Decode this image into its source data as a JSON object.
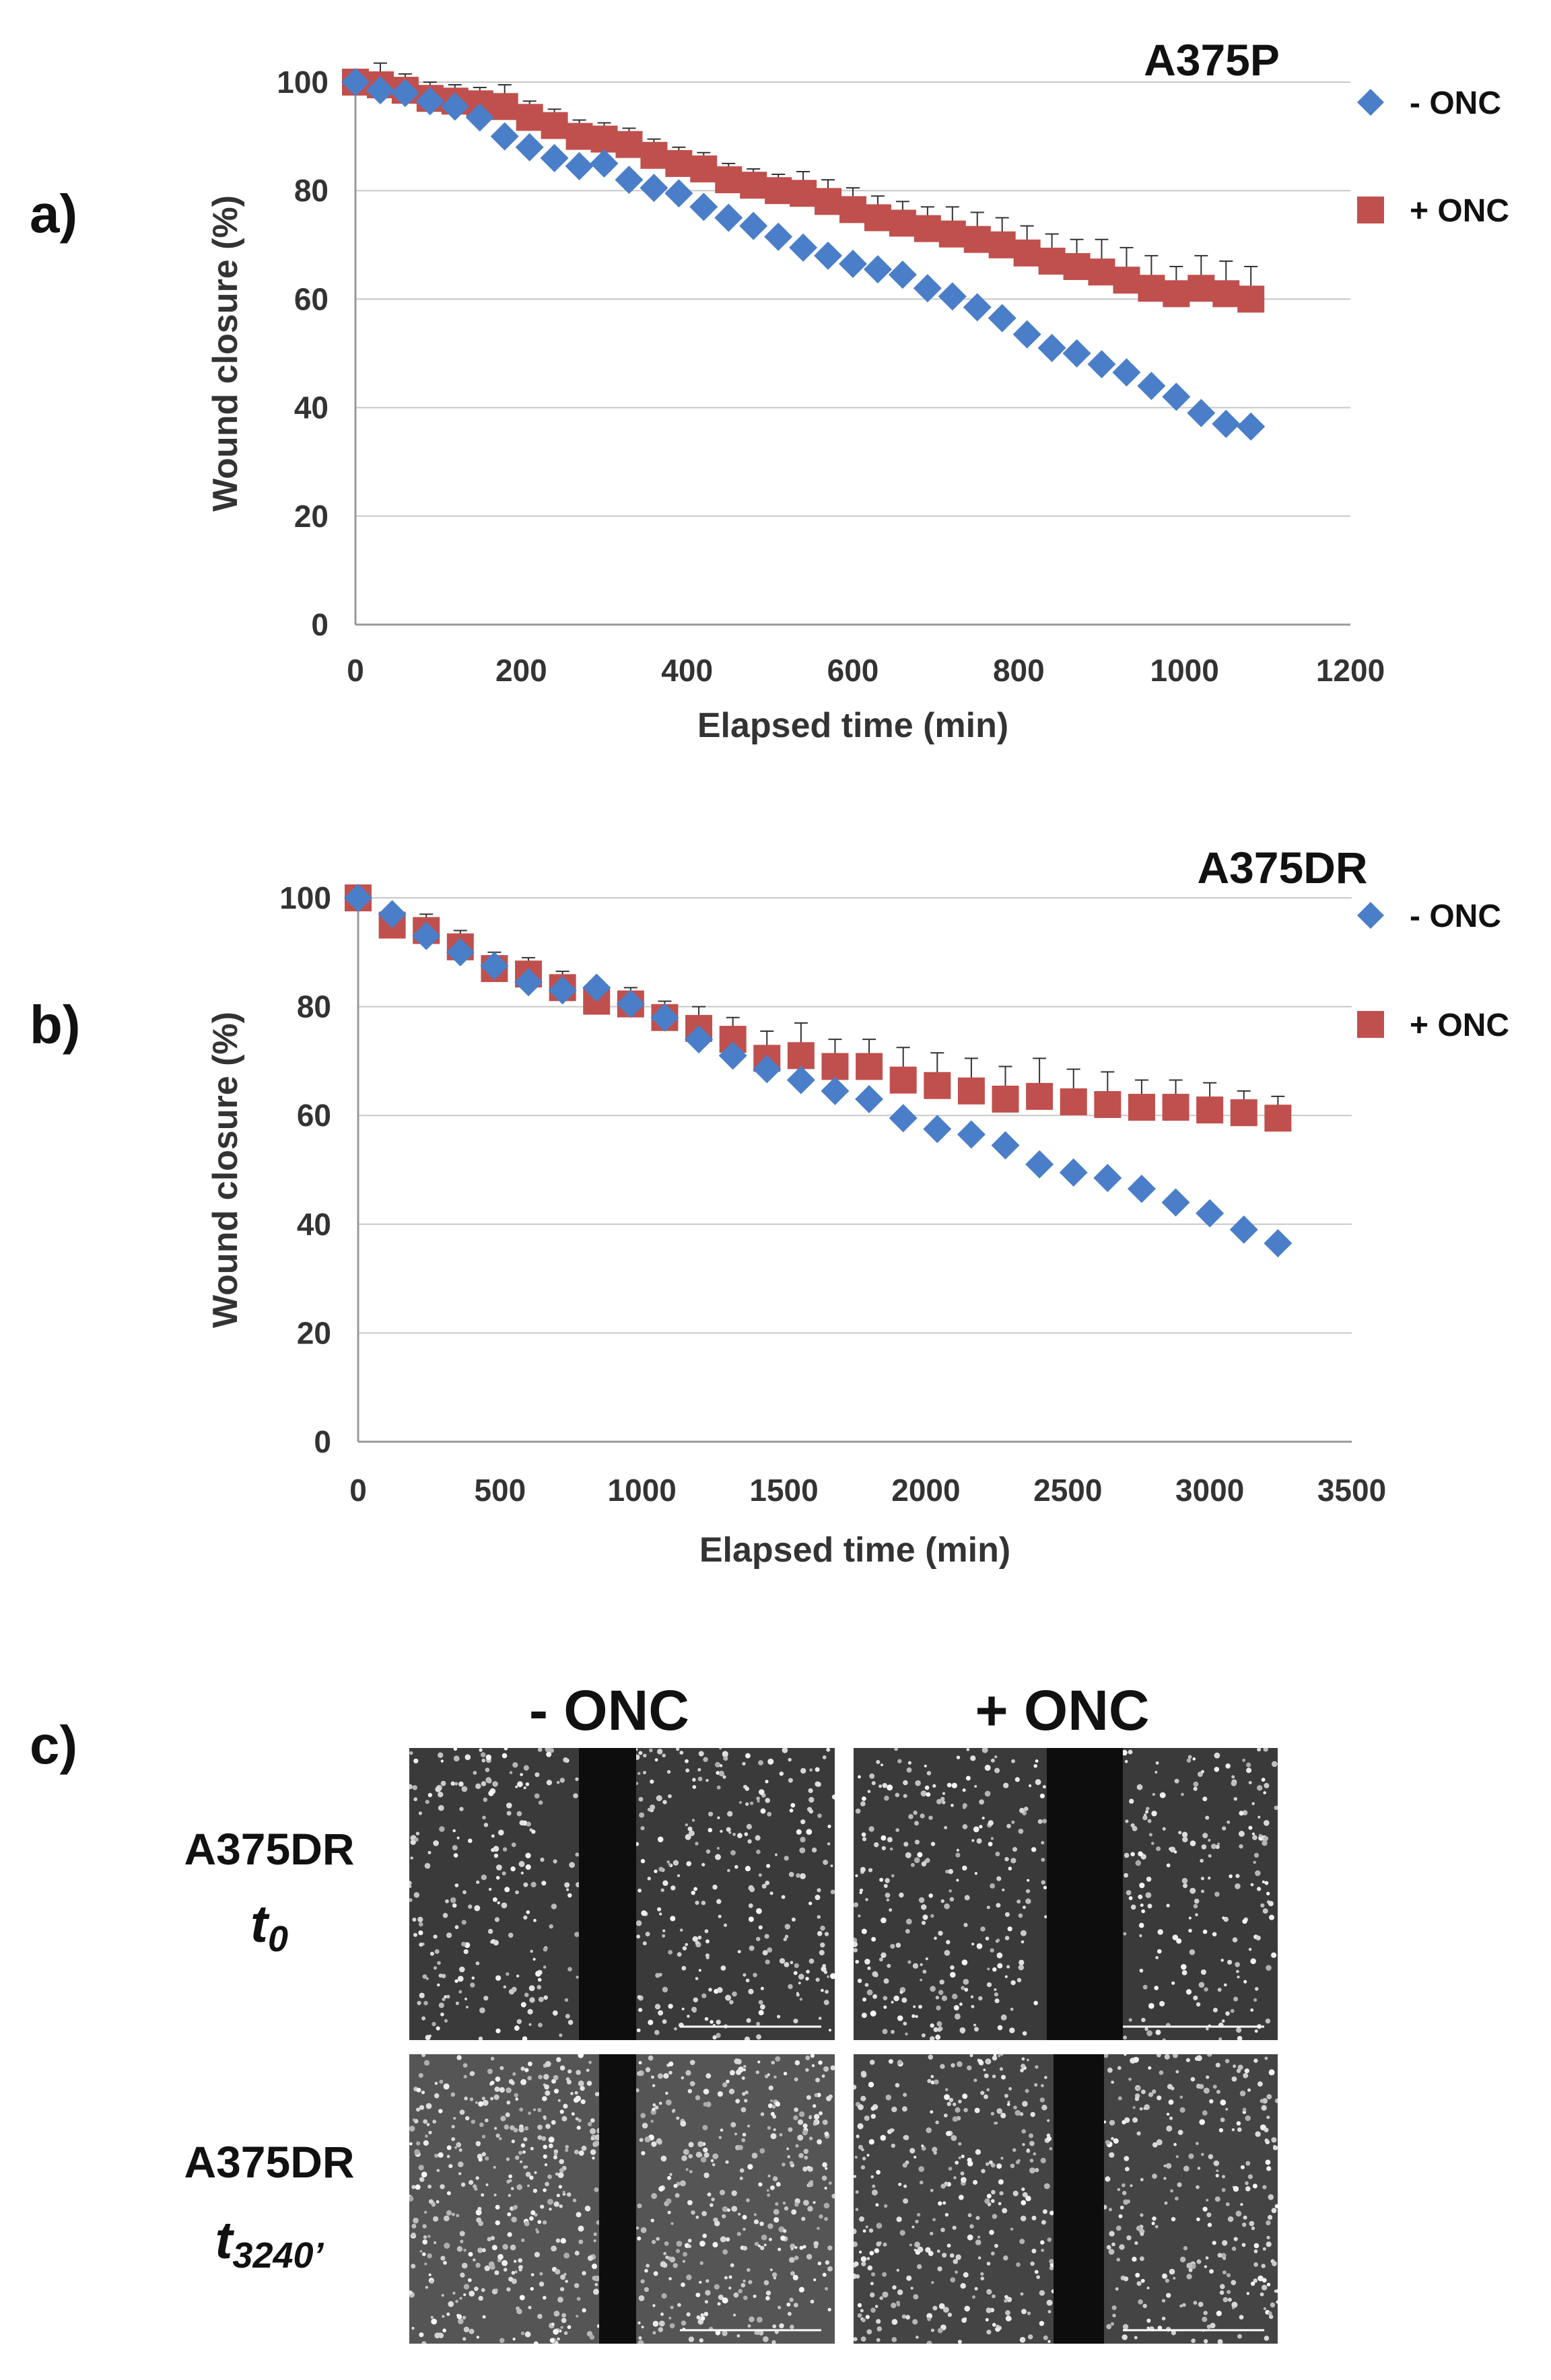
{
  "panels": {
    "a": "a)",
    "b": "b)",
    "c": "c)"
  },
  "chart_data": [
    {
      "type": "scatter",
      "title": "A375P",
      "xlabel": "Elapsed time (min)",
      "ylabel": "Wound closure (%)",
      "xlim": [
        0,
        1200
      ],
      "ylim": [
        0,
        100
      ],
      "xticks": [
        "0",
        "200",
        "400",
        "600",
        "800",
        "1000",
        "1200"
      ],
      "yticks": [
        "0",
        "20",
        "40",
        "60",
        "80",
        "100"
      ],
      "grid": "horizontal",
      "legend_position": "right",
      "series": [
        {
          "name": "- ONC",
          "color": "#4a7ec8",
          "marker": "diamond",
          "x": [
            0,
            30,
            60,
            90,
            120,
            150,
            180,
            210,
            240,
            270,
            300,
            330,
            360,
            390,
            420,
            450,
            480,
            510,
            540,
            570,
            600,
            630,
            660,
            690,
            720,
            750,
            780,
            810,
            840,
            870,
            900,
            930,
            960,
            990,
            1020,
            1050,
            1080
          ],
          "y": [
            100,
            98.5,
            98,
            96.5,
            95.5,
            93.5,
            90,
            88,
            86,
            84.5,
            85,
            82,
            80.5,
            79.5,
            77,
            75,
            73.5,
            71.5,
            69.5,
            68,
            66.5,
            65.5,
            64.5,
            62,
            60.5,
            58.5,
            56.5,
            53.5,
            51,
            50,
            48,
            46.5,
            44,
            42,
            39,
            37,
            36.5
          ]
        },
        {
          "name": "+ ONC",
          "color": "#c0504d",
          "marker": "square",
          "x": [
            0,
            30,
            60,
            90,
            120,
            150,
            180,
            210,
            240,
            270,
            300,
            330,
            360,
            390,
            420,
            450,
            480,
            510,
            540,
            570,
            600,
            630,
            660,
            690,
            720,
            750,
            780,
            810,
            840,
            870,
            900,
            930,
            960,
            990,
            1020,
            1050,
            1080
          ],
          "y": [
            100,
            99.5,
            98.5,
            97,
            96.5,
            96,
            95.5,
            93.5,
            92,
            90,
            89.5,
            88.5,
            86.5,
            85,
            84,
            82,
            81,
            80,
            79.5,
            78,
            76.5,
            75,
            74,
            73,
            72,
            71,
            70,
            68.5,
            67,
            66,
            65,
            63.5,
            62,
            61,
            62,
            61,
            60
          ],
          "err": [
            0,
            4,
            3,
            3,
            3,
            3,
            4,
            3,
            3,
            3,
            3,
            3,
            3,
            3,
            3,
            3,
            3,
            3,
            4,
            4,
            4,
            4,
            4,
            4,
            5,
            5,
            5,
            5,
            5,
            5,
            6,
            6,
            6,
            5,
            6,
            6,
            6
          ]
        }
      ]
    },
    {
      "type": "scatter",
      "title": "A375DR",
      "xlabel": "Elapsed time (min)",
      "ylabel": "Wound closure (%)",
      "xlim": [
        0,
        3500
      ],
      "ylim": [
        0,
        100
      ],
      "xticks": [
        "0",
        "500",
        "1000",
        "1500",
        "2000",
        "2500",
        "3000",
        "3500"
      ],
      "yticks": [
        "0",
        "20",
        "40",
        "60",
        "80",
        "100"
      ],
      "grid": "horizontal",
      "legend_position": "right",
      "series": [
        {
          "name": "- ONC",
          "color": "#4a7ec8",
          "marker": "diamond",
          "x": [
            0,
            120,
            240,
            360,
            480,
            600,
            720,
            840,
            960,
            1080,
            1200,
            1320,
            1440,
            1560,
            1680,
            1800,
            1920,
            2040,
            2160,
            2280,
            2400,
            2520,
            2640,
            2760,
            2880,
            3000,
            3120,
            3240
          ],
          "y": [
            100,
            97,
            93,
            90,
            87.5,
            84.5,
            83,
            83.5,
            80.5,
            78,
            74,
            71,
            68.5,
            66.5,
            64.5,
            63,
            59.5,
            57.5,
            56.5,
            54.5,
            51,
            49.5,
            48.5,
            46.5,
            44,
            42,
            39,
            36.5
          ]
        },
        {
          "name": "+ ONC",
          "color": "#c0504d",
          "marker": "square",
          "x": [
            0,
            120,
            240,
            360,
            480,
            600,
            720,
            840,
            960,
            1080,
            1200,
            1320,
            1440,
            1560,
            1680,
            1800,
            1920,
            2040,
            2160,
            2280,
            2400,
            2520,
            2640,
            2760,
            2880,
            3000,
            3120,
            3240
          ],
          "y": [
            100,
            95,
            94,
            91,
            87,
            86,
            83.5,
            81,
            80.5,
            78,
            76,
            74,
            70.5,
            71,
            69,
            69,
            66.5,
            65.5,
            64.5,
            63,
            63.5,
            62.5,
            62,
            61.5,
            61.5,
            61,
            60.5,
            59.5
          ],
          "err": [
            0,
            3,
            3,
            3,
            3,
            3,
            3,
            3,
            3,
            3,
            4,
            4,
            5,
            6,
            5,
            5,
            6,
            6,
            6,
            6,
            7,
            6,
            6,
            5,
            5,
            5,
            4,
            4
          ]
        }
      ]
    }
  ],
  "micro": {
    "col_minus": "- ONC",
    "col_plus": "+ ONC",
    "row1_cell": "A375DR",
    "row1_t": "t",
    "row1_sub": "0",
    "row2_cell": "A375DR",
    "row2_t": "t",
    "row2_sub": "3240’"
  }
}
